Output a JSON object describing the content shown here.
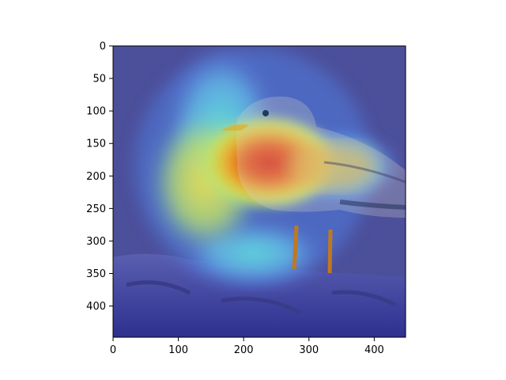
{
  "figure": {
    "background": "#ffffff",
    "image_description_colormap": "jet",
    "x_axis": {
      "range": [
        0,
        448
      ],
      "ticks": [
        0,
        100,
        200,
        300,
        400
      ]
    },
    "y_axis": {
      "range": [
        0,
        448
      ],
      "ticks": [
        0,
        50,
        100,
        150,
        200,
        250,
        300,
        350,
        400
      ],
      "inverted": true
    }
  },
  "x_tick_labels": [
    "0",
    "100",
    "200",
    "300",
    "400"
  ],
  "y_tick_labels": [
    "0",
    "50",
    "100",
    "150",
    "200",
    "250",
    "300",
    "350",
    "400"
  ]
}
